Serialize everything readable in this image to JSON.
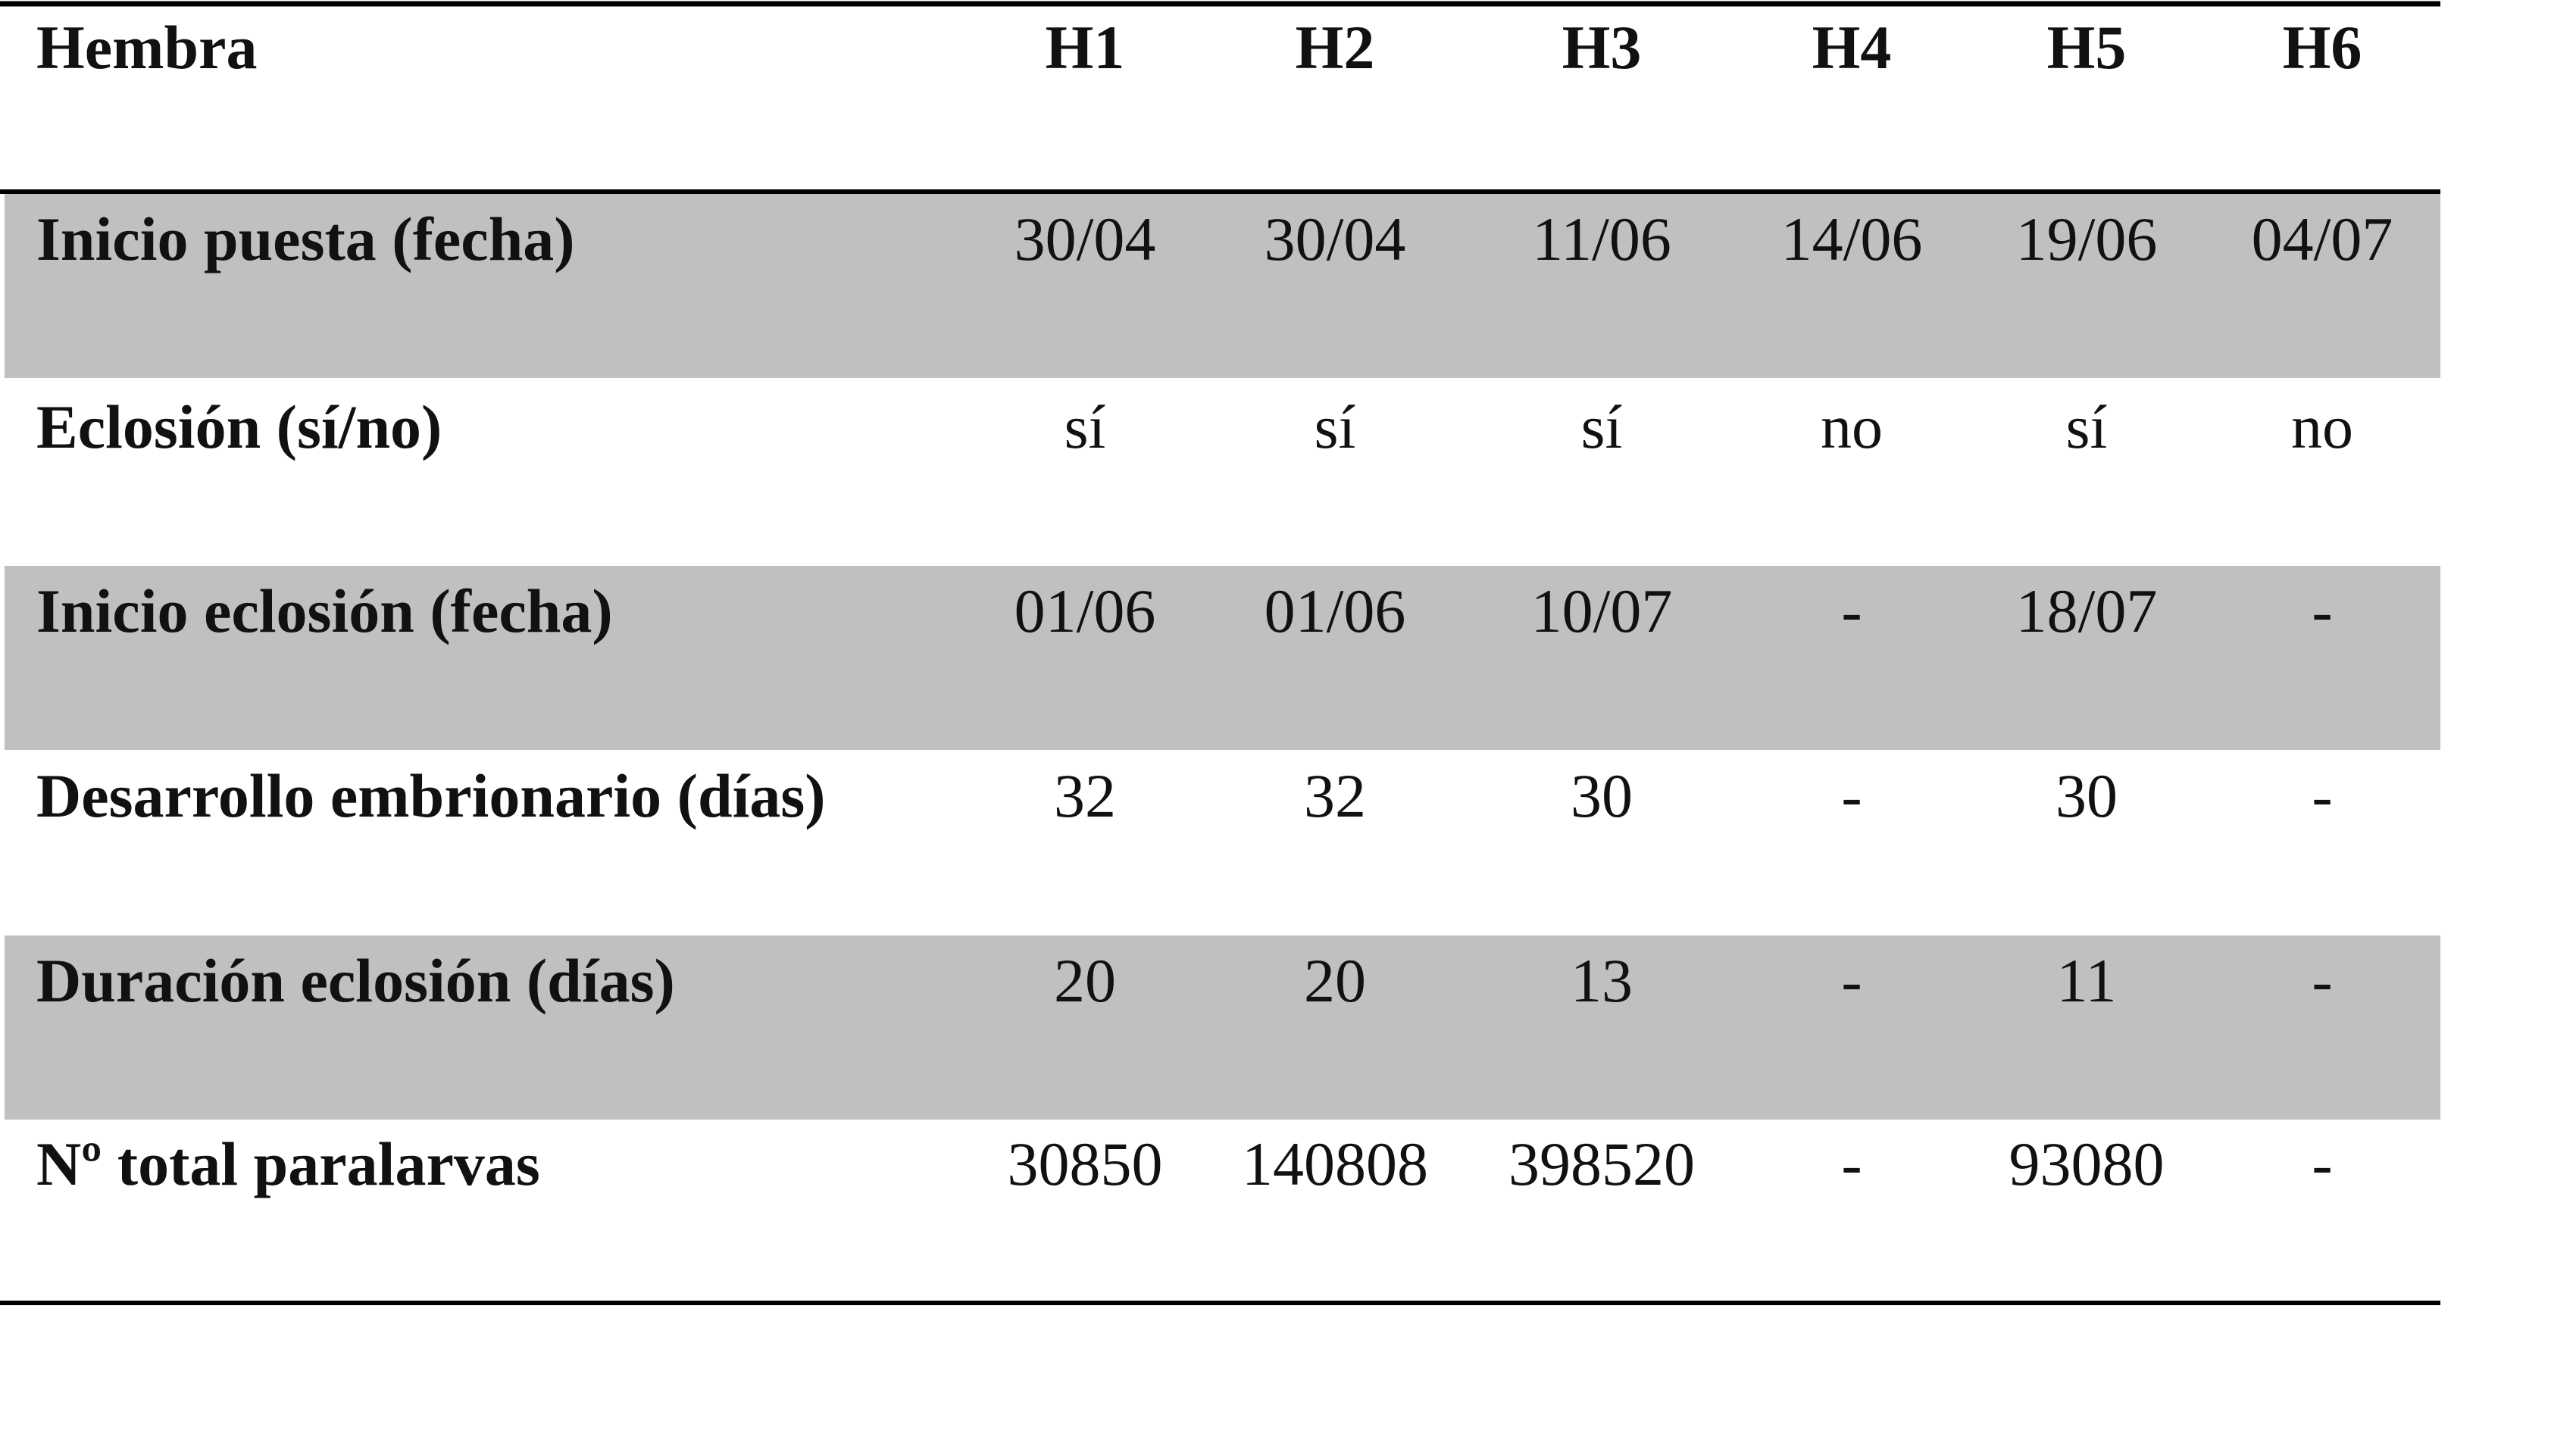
{
  "table": {
    "header": [
      "Hembra",
      "H1",
      "H2",
      "H3",
      "H4",
      "H5",
      "H6"
    ],
    "rows": [
      [
        "Inicio puesta (fecha)",
        "30/04",
        "30/04",
        "11/06",
        "14/06",
        "19/06",
        "04/07"
      ],
      [
        "Eclosión (sí/no)",
        "sí",
        "sí",
        "sí",
        "no",
        "sí",
        "no"
      ],
      [
        "Inicio eclosión (fecha)",
        "01/06",
        "01/06",
        "10/07",
        "-",
        "18/07",
        "-"
      ],
      [
        "Desarrollo embrionario (días)",
        "32",
        "32",
        "30",
        "-",
        "30",
        "-"
      ],
      [
        "Duración eclosión (días)",
        "20",
        "20",
        "13",
        "-",
        "11",
        "-"
      ],
      [
        "Nº total paralarvas",
        "30850",
        "140808",
        "398520",
        "-",
        "93080",
        "-"
      ]
    ]
  }
}
